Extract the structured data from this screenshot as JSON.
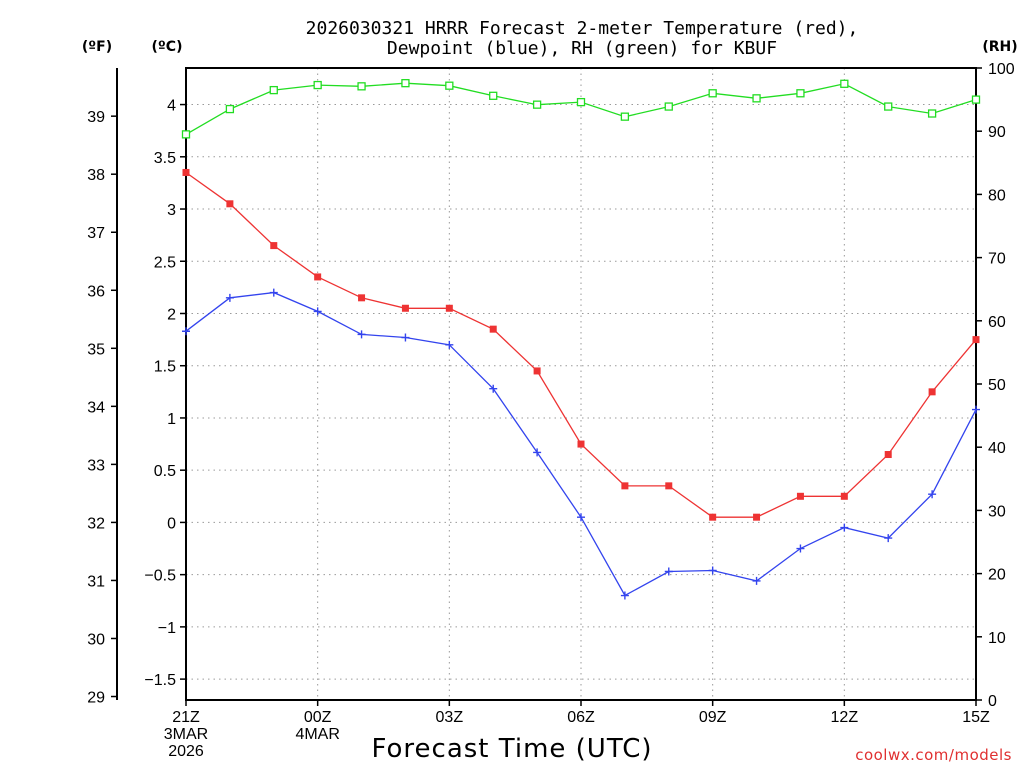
{
  "chart_data": {
    "type": "line",
    "title_line1": "2026030321 HRRR Forecast 2-meter Temperature (red),",
    "title_line2": "Dewpoint (blue), RH (green) for KBUF",
    "xlabel": "Forecast Time (UTC)",
    "credit": "coolwx.com/models",
    "units": {
      "fahrenheit": "(ºF)",
      "celsius": "(ºC)",
      "rh": "(RH)"
    },
    "x_hours": [
      0,
      1,
      2,
      3,
      4,
      5,
      6,
      7,
      8,
      9,
      10,
      11,
      12,
      13,
      14,
      15,
      16,
      17,
      18
    ],
    "xlim": [
      0,
      18
    ],
    "x_ticks": [
      {
        "hour": 0,
        "lines": [
          "21Z",
          "3MAR",
          "2026"
        ]
      },
      {
        "hour": 3,
        "lines": [
          "00Z",
          "4MAR"
        ]
      },
      {
        "hour": 6,
        "lines": [
          "03Z"
        ]
      },
      {
        "hour": 9,
        "lines": [
          "06Z"
        ]
      },
      {
        "hour": 12,
        "lines": [
          "09Z"
        ]
      },
      {
        "hour": 15,
        "lines": [
          "12Z"
        ]
      },
      {
        "hour": 18,
        "lines": [
          "15Z"
        ]
      }
    ],
    "celsius_axis": {
      "ylim": [
        -1.7,
        4.35
      ],
      "ticks": [
        "-1.5",
        "-1",
        "-0.5",
        "0",
        "0.5",
        "1",
        "1.5",
        "2",
        "2.5",
        "3",
        "3.5",
        "4"
      ]
    },
    "fahrenheit_axis": {
      "ylim": [
        28.94,
        39.83
      ],
      "ticks": [
        "29",
        "30",
        "31",
        "32",
        "33",
        "34",
        "35",
        "36",
        "37",
        "38",
        "39"
      ]
    },
    "rh_axis": {
      "ylim": [
        0,
        100
      ],
      "ticks": [
        "0",
        "10",
        "20",
        "30",
        "40",
        "50",
        "60",
        "70",
        "80",
        "90",
        "100"
      ]
    },
    "series": [
      {
        "name": "Temperature",
        "axis": "celsius",
        "color": "#ee3333",
        "marker": "filled-square",
        "values": [
          3.35,
          3.05,
          2.65,
          2.35,
          2.15,
          2.05,
          2.05,
          1.85,
          1.45,
          0.75,
          0.35,
          0.35,
          0.05,
          0.05,
          0.25,
          0.25,
          0.65,
          1.25,
          1.75
        ]
      },
      {
        "name": "Dewpoint",
        "axis": "celsius",
        "color": "#3344ee",
        "marker": "plus",
        "values": [
          1.83,
          2.15,
          2.2,
          2.02,
          1.8,
          1.77,
          1.7,
          1.28,
          0.67,
          0.05,
          -0.7,
          -0.47,
          -0.46,
          -0.56,
          -0.25,
          -0.05,
          -0.15,
          0.27,
          1.08
        ]
      },
      {
        "name": "RH",
        "axis": "rh",
        "color": "#22dd22",
        "marker": "open-square",
        "values": [
          89.5,
          93.5,
          96.5,
          97.3,
          97.1,
          97.6,
          97.2,
          95.6,
          94.2,
          94.6,
          92.3,
          93.9,
          96.0,
          95.2,
          96.0,
          97.5,
          93.9,
          92.8,
          95.0
        ]
      }
    ]
  }
}
